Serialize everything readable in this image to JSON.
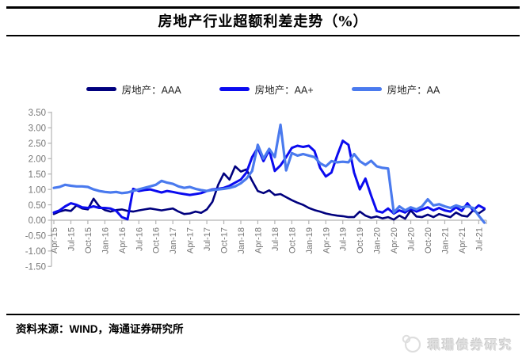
{
  "figure": {
    "title": "房地产行业超额利差走势（%）"
  },
  "legend": {
    "items": [
      {
        "id": "aaa",
        "label": "房地产：AAA",
        "color": "#00007E"
      },
      {
        "id": "aa-plus",
        "label": "房地产：AA+",
        "color": "#0B0BEF"
      },
      {
        "id": "aa",
        "label": "房地产：AA",
        "color": "#4A7AEE"
      }
    ]
  },
  "chart_data": {
    "type": "line",
    "title": "房地产行业超额利差走势（%）",
    "unit": "%",
    "grid": false,
    "legend_position": "top",
    "ylim": [
      -1.5,
      3.5
    ],
    "y_tick_labels": [
      "3.50",
      "3.00",
      "2.50",
      "2.00",
      "1.50",
      "1.00",
      "0.50",
      "0.00",
      "-0.50",
      "-1.00",
      "-1.50"
    ],
    "x_tick_labels": [
      "Apr-15",
      "Jul-15",
      "Oct-15",
      "Jan-16",
      "Apr-16",
      "Jul-16",
      "Oct-16",
      "Jan-17",
      "Apr-17",
      "Jul-17",
      "Oct-17",
      "Jan-18",
      "Apr-18",
      "Jul-18",
      "Oct-18",
      "Jan-19",
      "Apr-19",
      "Jul-19",
      "Oct-19",
      "Jan-20",
      "Apr-20",
      "Jul-20",
      "Oct-20",
      "Jan-21",
      "Apr-21",
      "Jul-21"
    ],
    "points_per_label": 3,
    "n_points": 77,
    "series": [
      {
        "name": "房地产：AAA",
        "color": "#00007E",
        "values": [
          0.2,
          0.28,
          0.33,
          0.3,
          0.48,
          0.38,
          0.35,
          0.7,
          0.45,
          0.33,
          0.28,
          0.33,
          0.35,
          0.3,
          0.28,
          0.32,
          0.35,
          0.38,
          0.35,
          0.32,
          0.35,
          0.38,
          0.28,
          0.2,
          0.22,
          0.28,
          0.24,
          0.35,
          0.6,
          1.15,
          1.52,
          1.32,
          1.75,
          1.58,
          1.65,
          1.28,
          0.95,
          0.88,
          0.97,
          0.82,
          0.85,
          0.75,
          0.65,
          0.57,
          0.5,
          0.4,
          0.33,
          0.28,
          0.22,
          0.18,
          0.15,
          0.13,
          0.1,
          0.1,
          0.28,
          0.15,
          0.08,
          0.12,
          0.06,
          0.1,
          0.02,
          0.15,
          0.05,
          0.32,
          0.12,
          0.1,
          0.18,
          0.1,
          0.2,
          0.15,
          0.1,
          0.25,
          0.15,
          0.12,
          0.32,
          0.22,
          0.35
        ]
      },
      {
        "name": "房地产：AA+",
        "color": "#0B0BEF",
        "values": [
          0.25,
          0.32,
          0.45,
          0.55,
          0.5,
          0.42,
          0.4,
          0.45,
          0.4,
          0.4,
          0.38,
          0.3,
          0.1,
          0.03,
          1.02,
          0.95,
          0.98,
          1.0,
          0.95,
          0.9,
          0.95,
          0.92,
          0.88,
          0.85,
          0.82,
          0.85,
          0.88,
          0.95,
          1.0,
          1.02,
          1.05,
          1.12,
          1.22,
          1.32,
          1.55,
          2.05,
          2.35,
          1.92,
          2.28,
          1.6,
          1.78,
          2.05,
          2.35,
          2.42,
          2.38,
          2.42,
          2.25,
          1.7,
          1.42,
          1.55,
          2.1,
          2.58,
          2.45,
          1.55,
          1.0,
          1.35,
          0.8,
          0.3,
          0.25,
          0.38,
          0.22,
          0.32,
          0.25,
          0.38,
          0.28,
          0.35,
          0.42,
          0.32,
          0.4,
          0.32,
          0.28,
          0.42,
          0.3,
          0.55,
          0.32,
          0.48,
          0.38
        ]
      },
      {
        "name": "房地产：AA",
        "color": "#4A7AEE",
        "values": [
          1.05,
          1.08,
          1.15,
          1.12,
          1.1,
          1.1,
          1.08,
          1.0,
          0.95,
          0.92,
          0.9,
          0.92,
          0.88,
          0.9,
          0.95,
          1.0,
          1.05,
          1.1,
          1.15,
          1.28,
          1.22,
          1.18,
          1.1,
          1.05,
          1.08,
          1.02,
          0.98,
          0.95,
          0.98,
          1.0,
          1.02,
          1.05,
          1.1,
          1.2,
          1.35,
          1.6,
          2.45,
          2.0,
          2.32,
          2.05,
          3.1,
          1.62,
          2.18,
          2.1,
          2.15,
          2.1,
          2.05,
          1.85,
          1.75,
          1.92,
          1.88,
          1.9,
          1.88,
          2.15,
          1.92,
          1.8,
          1.93,
          1.75,
          1.7,
          1.68,
          0.25,
          0.45,
          0.32,
          0.42,
          0.35,
          0.45,
          0.68,
          0.48,
          0.52,
          0.45,
          0.4,
          0.48,
          0.42,
          0.45,
          0.4,
          0.15,
          -0.08
        ]
      }
    ]
  },
  "footer": {
    "source": "资料来源：WIND，海通证券研究所"
  },
  "watermark": {
    "text": "珮珊债券研究"
  }
}
